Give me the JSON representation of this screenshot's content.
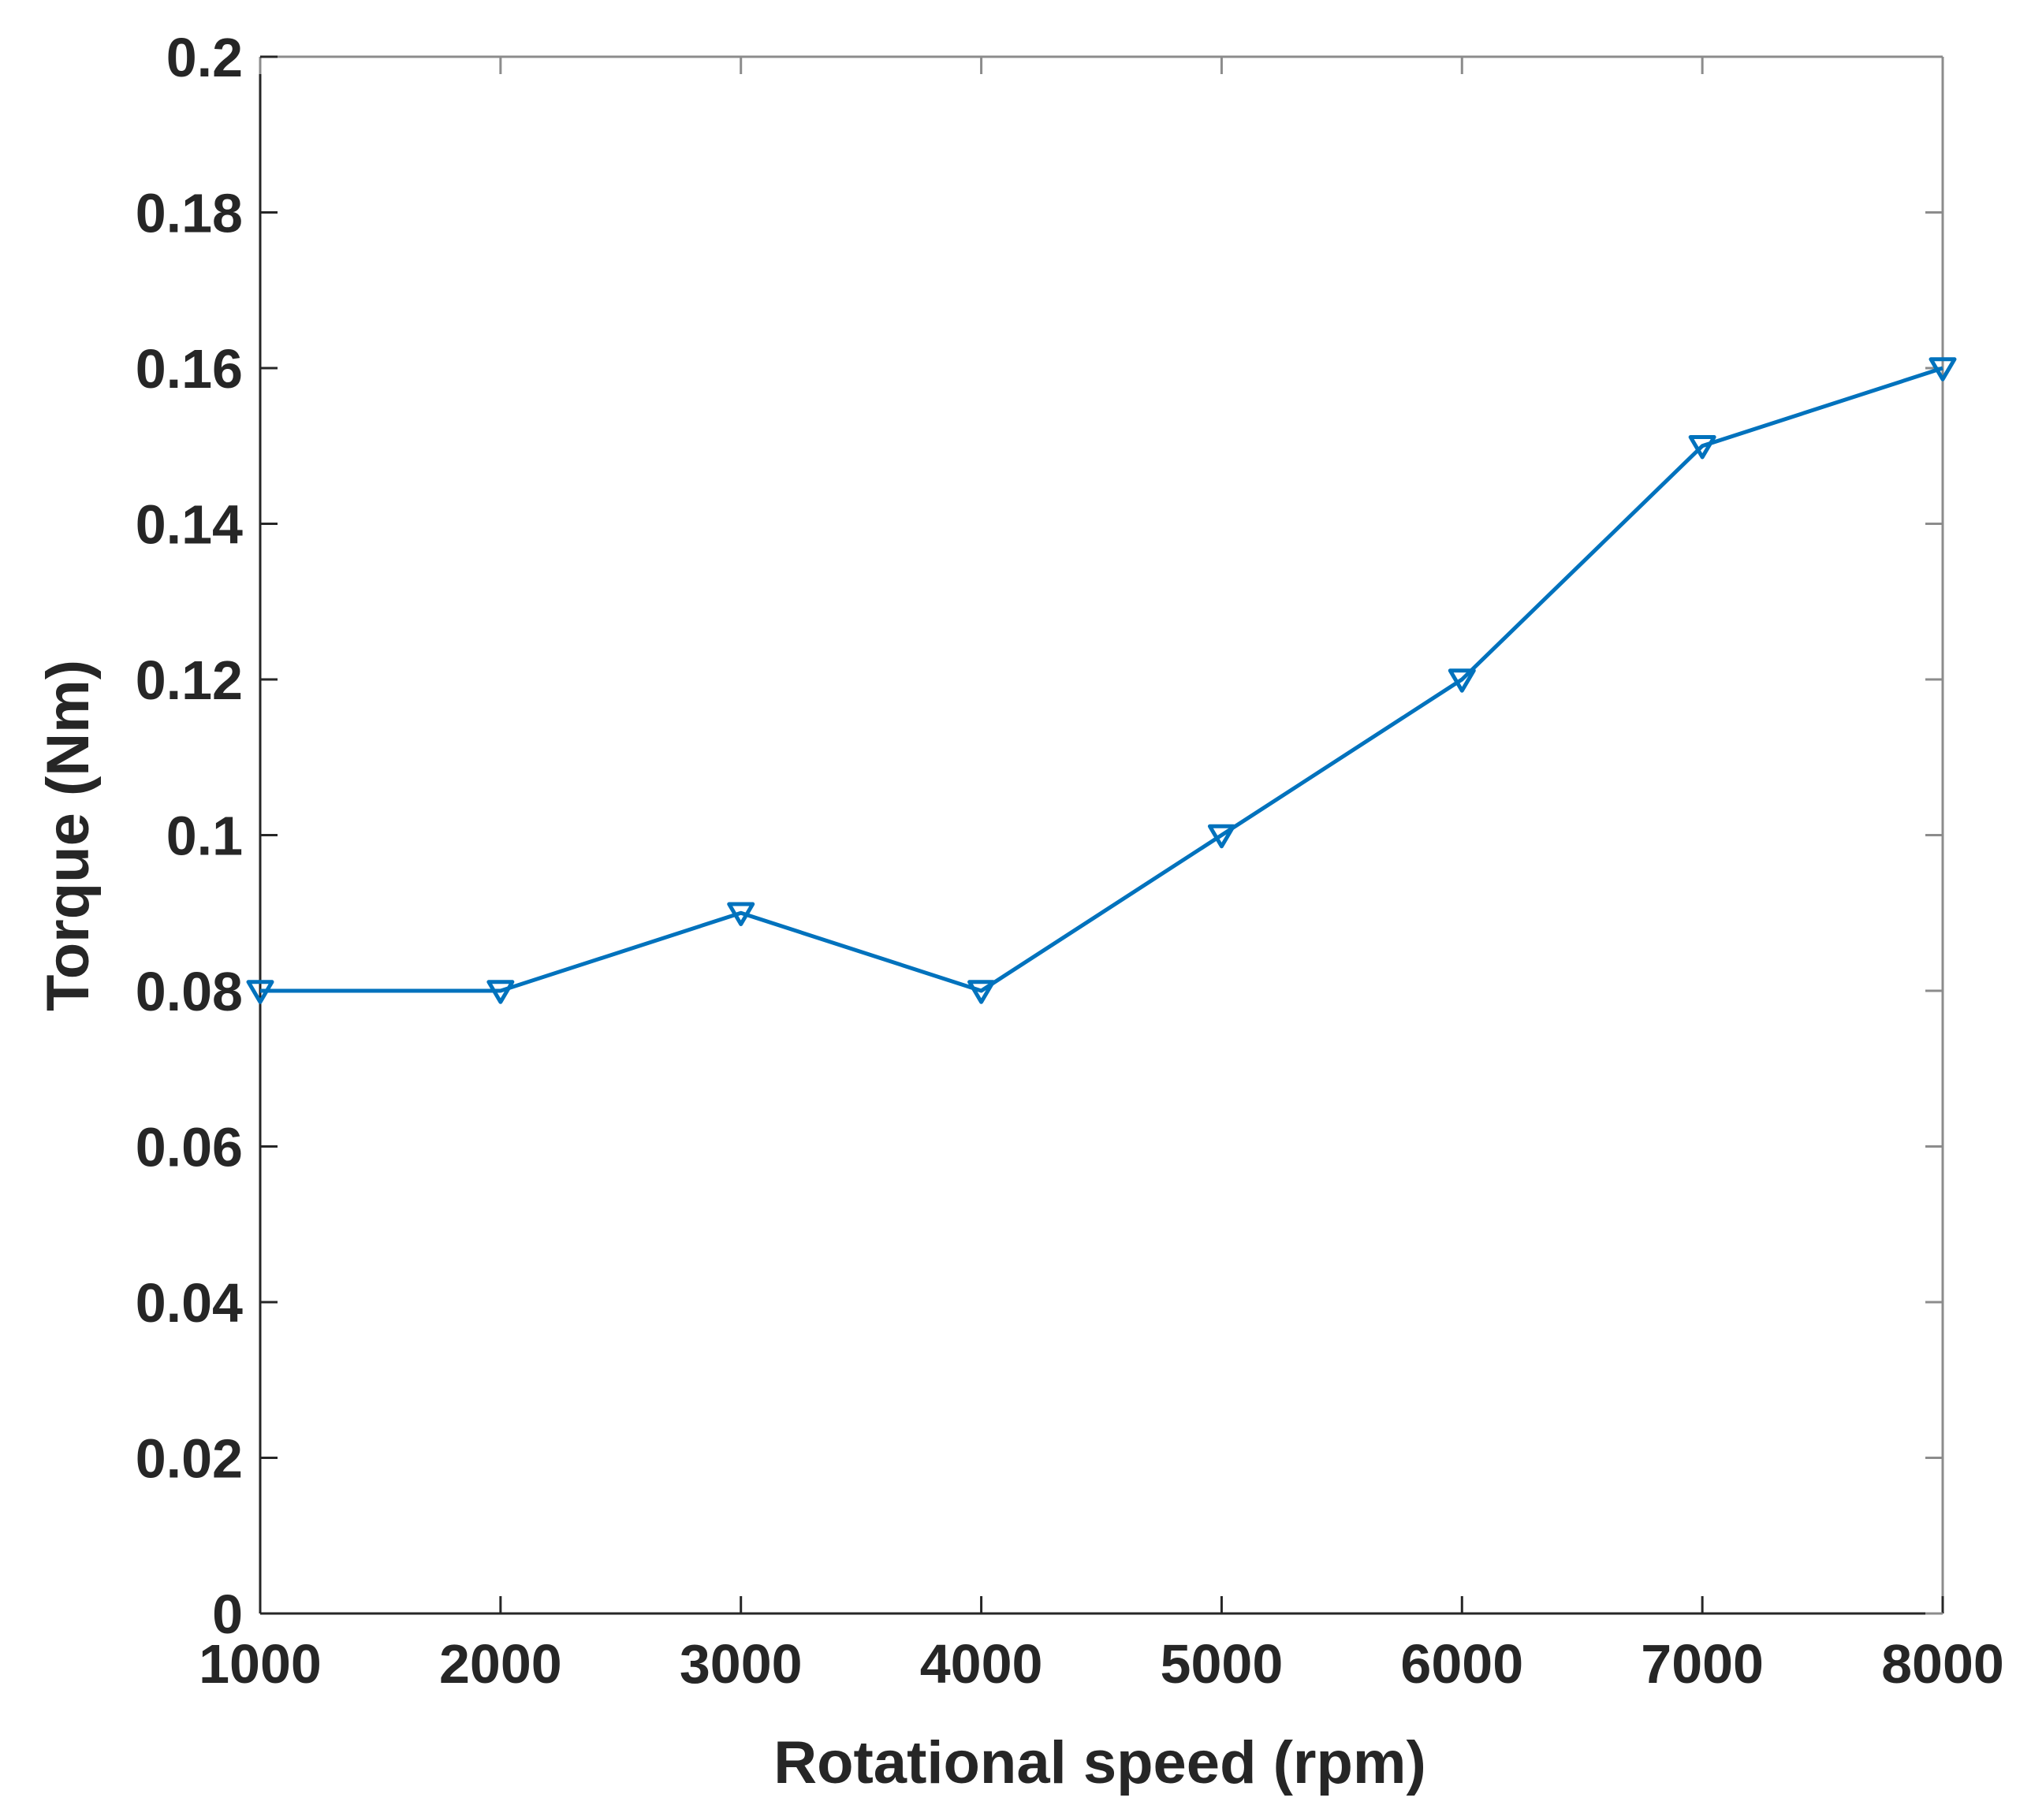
{
  "chart_data": {
    "type": "line",
    "title": "",
    "xlabel": "Rotational speed (rpm)",
    "ylabel": "Torque (Nm)",
    "xlim": [
      1000,
      8000
    ],
    "ylim": [
      0,
      0.2
    ],
    "x_ticks": [
      "1000",
      "2000",
      "3000",
      "4000",
      "5000",
      "6000",
      "7000",
      "8000"
    ],
    "y_ticks": [
      "0",
      "0.02",
      "0.04",
      "0.06",
      "0.08",
      "0.1",
      "0.12",
      "0.14",
      "0.16",
      "0.18",
      "0.2"
    ],
    "grid": false,
    "marker": "triangle-down",
    "colors": {
      "line": "#0072BD",
      "axis": "#262626",
      "box": "#8c8c8c"
    },
    "series": [
      {
        "x": [
          1000,
          2000,
          3000,
          4000,
          5000,
          6000,
          7000,
          8000
        ],
        "values": [
          0.08,
          0.08,
          0.09,
          0.08,
          0.1,
          0.12,
          0.15,
          0.16
        ]
      }
    ]
  }
}
